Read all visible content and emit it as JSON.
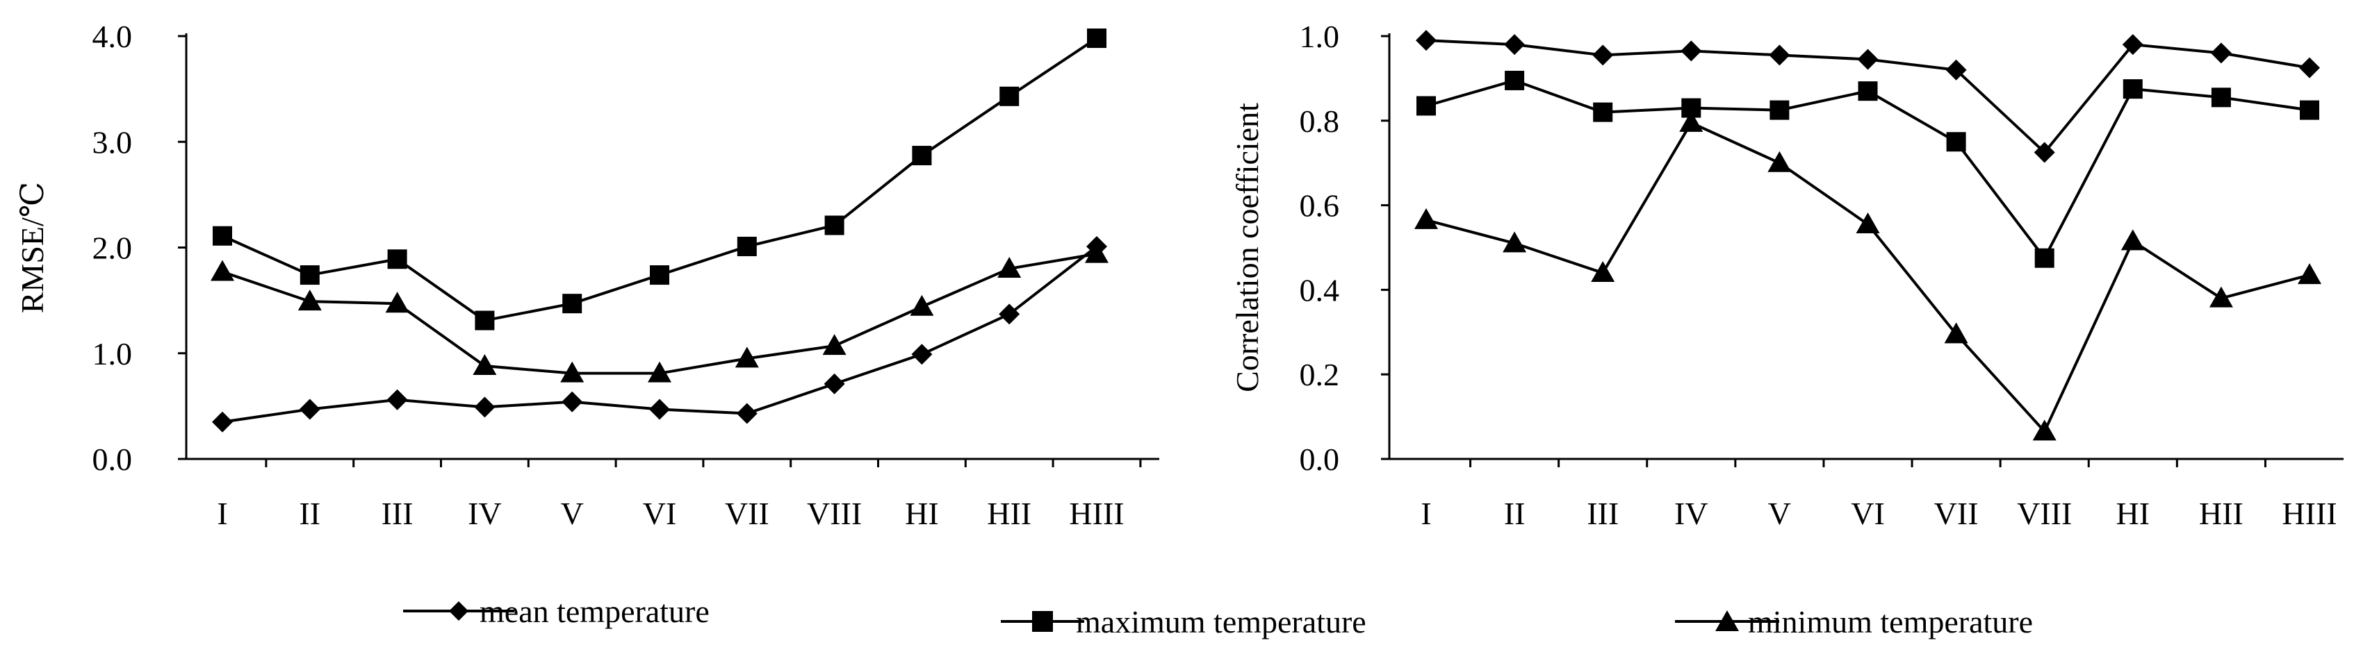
{
  "chart_data": [
    {
      "type": "line",
      "title": "",
      "xlabel": "",
      "ylabel": "RMSE/℃",
      "ylim": [
        0,
        4
      ],
      "ytick_labels": [
        "0.0",
        "1.0",
        "2.0",
        "3.0",
        "4.0"
      ],
      "ytick_values": [
        0,
        1,
        2,
        3,
        4
      ],
      "categories": [
        "I",
        "II",
        "III",
        "IV",
        "V",
        "VI",
        "VII",
        "VIII",
        "HI",
        "HII",
        "HIII"
      ],
      "grid": false,
      "series": [
        {
          "name": "mean temperature",
          "marker": "diamond",
          "values": [
            0.35,
            0.47,
            0.56,
            0.49,
            0.54,
            0.47,
            0.43,
            0.71,
            0.99,
            1.37,
            2.01
          ]
        },
        {
          "name": "maximum temperature",
          "marker": "square",
          "values": [
            2.11,
            1.74,
            1.89,
            1.31,
            1.47,
            1.74,
            2.01,
            2.21,
            2.87,
            3.43,
            3.98
          ]
        },
        {
          "name": "minimum temperature",
          "marker": "triangle",
          "values": [
            1.77,
            1.49,
            1.47,
            0.88,
            0.81,
            0.81,
            0.95,
            1.07,
            1.44,
            1.8,
            1.94
          ]
        }
      ]
    },
    {
      "type": "line",
      "title": "",
      "xlabel": "",
      "ylabel": "Correlation coefficient",
      "ylim": [
        0,
        1
      ],
      "ytick_labels": [
        "0.0",
        "0.2",
        "0.4",
        "0.6",
        "0.8",
        "1.0"
      ],
      "ytick_values": [
        0,
        0.2,
        0.4,
        0.6,
        0.8,
        1.0
      ],
      "categories": [
        "I",
        "II",
        "III",
        "IV",
        "V",
        "VI",
        "VII",
        "VIII",
        "HI",
        "HII",
        "HIII"
      ],
      "grid": false,
      "series": [
        {
          "name": "mean temperature",
          "marker": "diamond",
          "values": [
            0.99,
            0.98,
            0.955,
            0.965,
            0.955,
            0.945,
            0.92,
            0.725,
            0.98,
            0.96,
            0.925
          ]
        },
        {
          "name": "maximum temperature",
          "marker": "square",
          "values": [
            0.835,
            0.895,
            0.82,
            0.83,
            0.825,
            0.87,
            0.75,
            0.475,
            0.875,
            0.855,
            0.825
          ]
        },
        {
          "name": "minimum temperature",
          "marker": "triangle",
          "values": [
            0.565,
            0.51,
            0.44,
            0.795,
            0.7,
            0.555,
            0.295,
            0.065,
            0.515,
            0.38,
            0.435
          ]
        }
      ]
    }
  ],
  "legend": {
    "placement": "bottom",
    "items": [
      {
        "label": "mean temperature",
        "marker": "diamond"
      },
      {
        "label": "maximum temperature",
        "marker": "square"
      },
      {
        "label": "minimum temperature",
        "marker": "triangle"
      }
    ]
  }
}
